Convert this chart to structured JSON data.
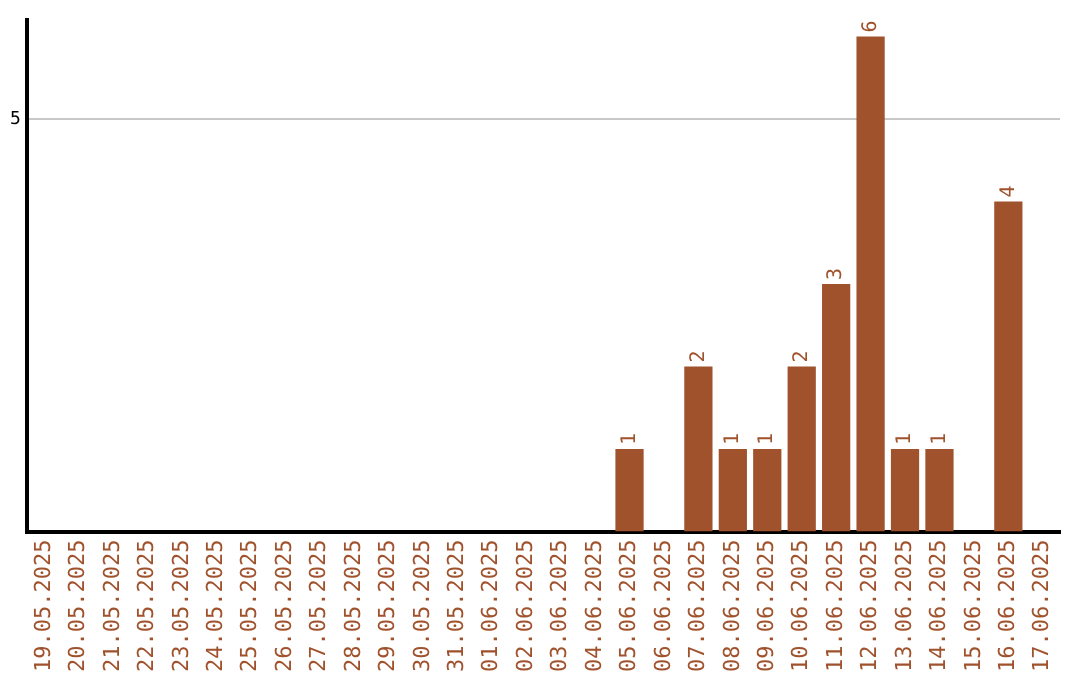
{
  "chart_data": {
    "type": "bar",
    "categories": [
      "19.05.2025",
      "20.05.2025",
      "21.05.2025",
      "22.05.2025",
      "23.05.2025",
      "24.05.2025",
      "25.05.2025",
      "26.05.2025",
      "27.05.2025",
      "28.05.2025",
      "29.05.2025",
      "30.05.2025",
      "31.05.2025",
      "01.06.2025",
      "02.06.2025",
      "03.06.2025",
      "04.06.2025",
      "05.06.2025",
      "06.06.2025",
      "07.06.2025",
      "08.06.2025",
      "09.06.2025",
      "10.06.2025",
      "11.06.2025",
      "12.06.2025",
      "13.06.2025",
      "14.06.2025",
      "15.06.2025",
      "16.06.2025",
      "17.06.2025"
    ],
    "values": [
      null,
      null,
      null,
      null,
      null,
      null,
      null,
      null,
      null,
      null,
      null,
      null,
      null,
      null,
      null,
      null,
      null,
      1,
      null,
      2,
      1,
      1,
      2,
      3,
      6,
      1,
      1,
      null,
      4,
      null
    ],
    "data_labels": true,
    "color": "#a0522d",
    "ylim": [
      0,
      6.2
    ],
    "yticks": [
      5
    ],
    "grid": "y",
    "legend": false
  }
}
